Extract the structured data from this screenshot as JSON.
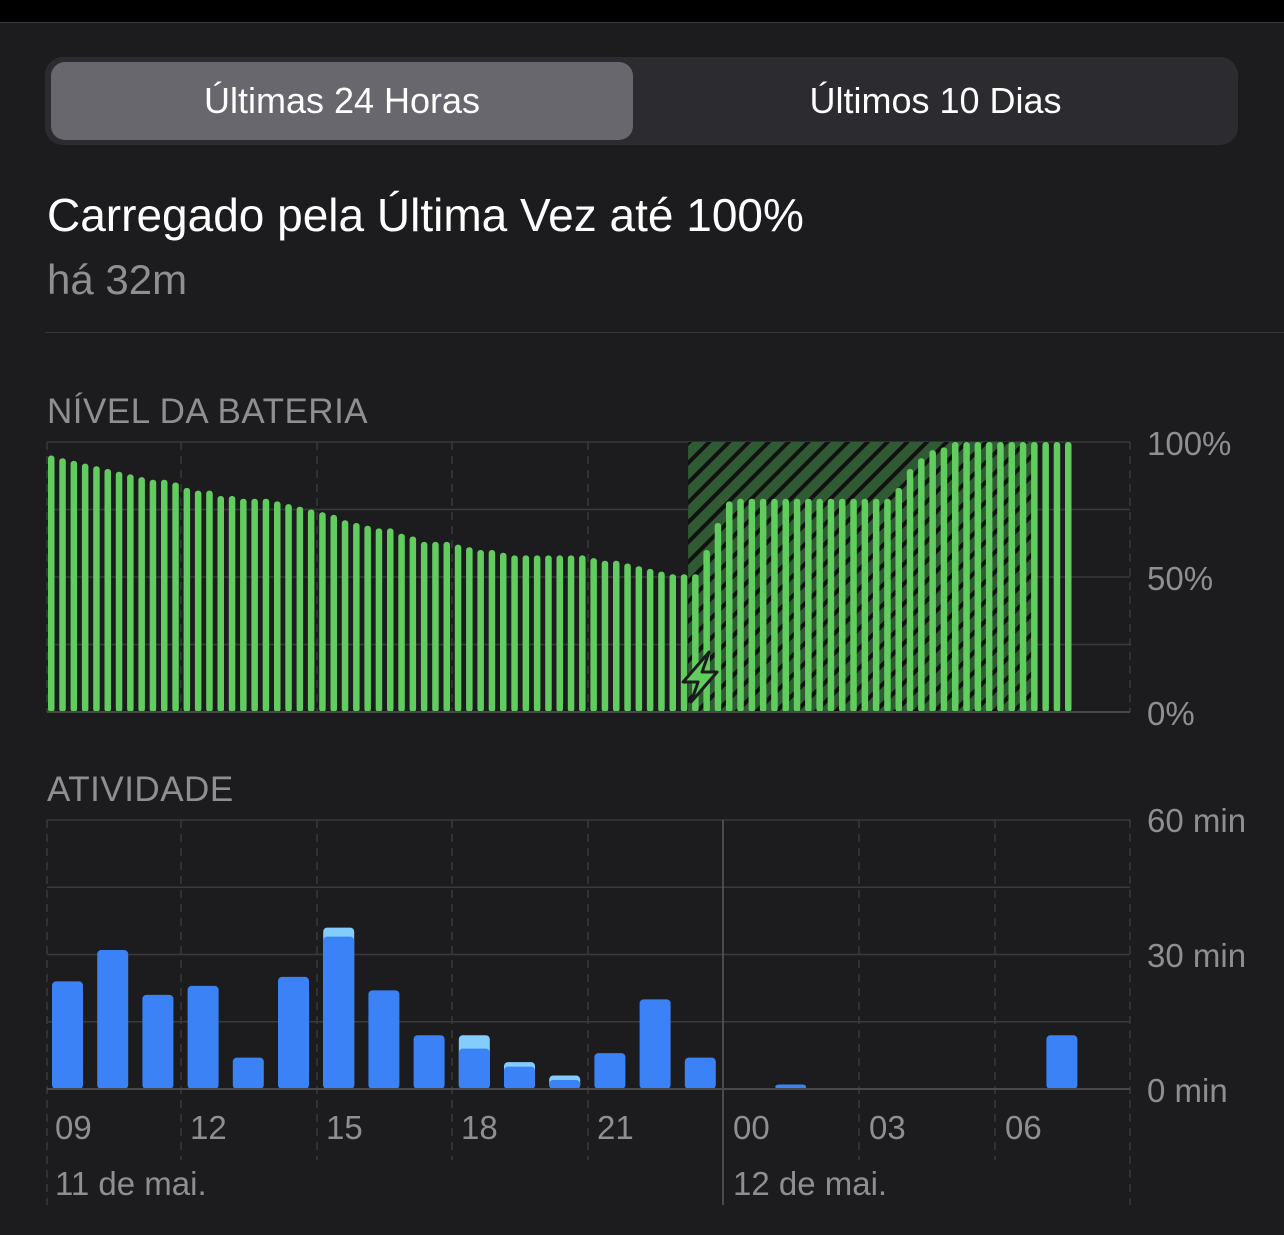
{
  "segmented_control": {
    "options": [
      "Últimas 24 Horas",
      "Últimos 10 Dias"
    ],
    "selected": "Últimas 24 Horas"
  },
  "last_charge": {
    "title": "Carregado pela Última Vez até 100%",
    "time_ago": "há 32m"
  },
  "colors": {
    "battery_bar": "#62cd5f",
    "charging_fill": "#2f5a33",
    "screen_on": "#3a82f6",
    "screen_off": "#82cdfd",
    "background": "#1c1c1e"
  },
  "chart_data": [
    {
      "type": "bar",
      "title": "NÍVEL DA BATERIA",
      "y_ticks": [
        "100%",
        "50%",
        "0%"
      ],
      "ylim": [
        0,
        100
      ],
      "grid": true,
      "interval": "15 min",
      "start": "09:00",
      "charging_period": {
        "from": "23:15",
        "to": "07:00",
        "icon": "lightning-bolt-icon"
      },
      "values": [
        95,
        94,
        93,
        92,
        91,
        90,
        89,
        88,
        87,
        86,
        86,
        85,
        83,
        82,
        82,
        80,
        80,
        79,
        79,
        79,
        78,
        77,
        76,
        75,
        74,
        73,
        71,
        70,
        69,
        68,
        68,
        66,
        65,
        63,
        63,
        63,
        62,
        61,
        60,
        60,
        59,
        58,
        58,
        58,
        58,
        58,
        58,
        58,
        57,
        56,
        56,
        55,
        54,
        53,
        52,
        51,
        51,
        51,
        60,
        70,
        78,
        79,
        79,
        79,
        79,
        79,
        79,
        79,
        79,
        79,
        79,
        79,
        79,
        79,
        79,
        83,
        90,
        94,
        97,
        98,
        100,
        100,
        100,
        100,
        100,
        100,
        100,
        100,
        100,
        100,
        100
      ]
    },
    {
      "type": "bar",
      "title": "ATIVIDADE",
      "y_ticks": [
        "60 min",
        "30 min",
        "0 min"
      ],
      "ylim": [
        0,
        60
      ],
      "grid": true,
      "x_tick_labels": [
        "09",
        "12",
        "15",
        "18",
        "21",
        "00",
        "03",
        "06"
      ],
      "date_labels": [
        "11 de mai.",
        "12 de mai."
      ],
      "categories": [
        "09",
        "10",
        "11",
        "12",
        "13",
        "14",
        "15",
        "16",
        "17",
        "18",
        "19",
        "20",
        "21",
        "22",
        "23",
        "00",
        "01",
        "02",
        "03",
        "04",
        "05",
        "06",
        "07",
        "08"
      ],
      "series": [
        {
          "key": "screen_on",
          "values": [
            24,
            31,
            21,
            23,
            7,
            25,
            34,
            22,
            12,
            9,
            5,
            2,
            8,
            20,
            7,
            0,
            1,
            0,
            0,
            0,
            0,
            0,
            12,
            0
          ]
        },
        {
          "key": "screen_off",
          "values": [
            0,
            0,
            0,
            0,
            0,
            0,
            2,
            0,
            0,
            3,
            1,
            1,
            0,
            0,
            0,
            0,
            0,
            0,
            0,
            0,
            0,
            0,
            0,
            0
          ]
        }
      ]
    }
  ]
}
